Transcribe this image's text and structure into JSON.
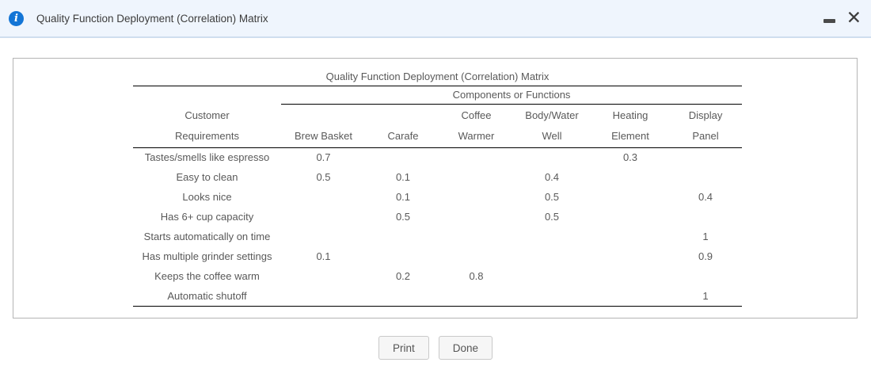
{
  "window": {
    "title": "Quality Function Deployment (Correlation) Matrix",
    "icons": {
      "info_glyph": "i",
      "close_glyph": "✕"
    }
  },
  "matrix": {
    "title": "Quality Function Deployment (Correlation) Matrix",
    "group_header": "Components or Functions",
    "row_header": {
      "line1": "Customer",
      "line2": "Requirements"
    },
    "columns": [
      {
        "line1": "",
        "line2": "Brew Basket"
      },
      {
        "line1": "",
        "line2": "Carafe"
      },
      {
        "line1": "Coffee",
        "line2": "Warmer"
      },
      {
        "line1": "Body/Water",
        "line2": "Well"
      },
      {
        "line1": "Heating",
        "line2": "Element"
      },
      {
        "line1": "Display",
        "line2": "Panel"
      }
    ],
    "rows": [
      {
        "label": "Tastes/smells like espresso",
        "values": [
          "0.7",
          "",
          "",
          "",
          "0.3",
          ""
        ]
      },
      {
        "label": "Easy to clean",
        "values": [
          "0.5",
          "0.1",
          "",
          "0.4",
          "",
          ""
        ]
      },
      {
        "label": "Looks nice",
        "values": [
          "",
          "0.1",
          "",
          "0.5",
          "",
          "0.4"
        ]
      },
      {
        "label": "Has 6+ cup capacity",
        "values": [
          "",
          "0.5",
          "",
          "0.5",
          "",
          ""
        ]
      },
      {
        "label": "Starts automatically on time",
        "values": [
          "",
          "",
          "",
          "",
          "",
          "1"
        ]
      },
      {
        "label": "Has multiple grinder settings",
        "values": [
          "0.1",
          "",
          "",
          "",
          "",
          "0.9"
        ]
      },
      {
        "label": "Keeps the coffee warm",
        "values": [
          "",
          "0.2",
          "0.8",
          "",
          "",
          ""
        ]
      },
      {
        "label": "Automatic shutoff",
        "values": [
          "",
          "",
          "",
          "",
          "",
          "1"
        ]
      }
    ]
  },
  "footer": {
    "print_label": "Print",
    "done_label": "Done"
  },
  "colors": {
    "titlebar_bg": "#eff5fd",
    "titlebar_border": "#cfdeef",
    "info_icon_blue": "#1375d6",
    "panel_border": "#b5b5b5",
    "table_line": "#000000",
    "text_gray": "#595959",
    "button_bg": "#f6f6f6",
    "button_border": "#c9c9c9"
  }
}
